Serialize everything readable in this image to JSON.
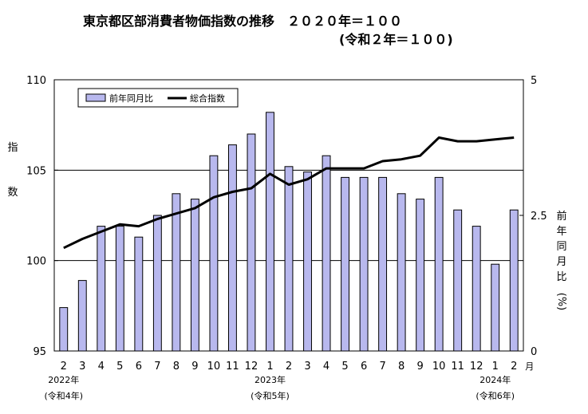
{
  "chart_data": {
    "type": "bar+line",
    "title": "東京都区部消費者物価指数の推移　２０２０年＝１００",
    "subtitle": "(令和２年＝１００)",
    "x": [
      "2",
      "3",
      "4",
      "5",
      "6",
      "7",
      "8",
      "9",
      "10",
      "11",
      "12",
      "1",
      "2",
      "3",
      "4",
      "5",
      "6",
      "7",
      "8",
      "9",
      "10",
      "11",
      "12",
      "1",
      "2"
    ],
    "x_unit": "月",
    "year_labels": [
      {
        "year": "2022年",
        "era": "(令和4年)",
        "at": "2"
      },
      {
        "year": "2023年",
        "era": "(令和5年)",
        "at": "1"
      },
      {
        "year": "2024年",
        "era": "(令和6年)",
        "at": "1"
      }
    ],
    "left_axis": {
      "label": [
        "指",
        "数"
      ],
      "ylim": [
        95,
        110
      ],
      "ticks": [
        "95",
        "100",
        "105",
        "110"
      ]
    },
    "right_axis": {
      "label": [
        "前",
        "年",
        "同",
        "月",
        "比",
        "(%)"
      ],
      "ylim": [
        0,
        5
      ],
      "ticks": [
        "0",
        "2.5",
        "5"
      ]
    },
    "grid_lines_at_left": [
      100,
      105
    ],
    "legend": {
      "placement": "top-left",
      "bar_label": "前年同月比",
      "line_label": "総合指数"
    },
    "series": [
      {
        "name": "前年同月比",
        "kind": "bar",
        "axis": "right",
        "values": [
          0.8,
          1.3,
          2.3,
          2.3,
          2.1,
          2.5,
          2.9,
          2.8,
          3.6,
          3.8,
          4.0,
          4.4,
          3.4,
          3.3,
          3.6,
          3.2,
          3.2,
          3.2,
          2.9,
          2.8,
          3.2,
          2.6,
          2.3,
          1.6,
          2.6
        ]
      },
      {
        "name": "総合指数",
        "kind": "line",
        "axis": "left",
        "values": [
          100.7,
          101.2,
          101.6,
          102.0,
          101.9,
          102.3,
          102.6,
          102.9,
          103.5,
          103.8,
          104.0,
          104.8,
          104.2,
          104.5,
          105.1,
          105.1,
          105.1,
          105.5,
          105.6,
          105.8,
          106.8,
          106.6,
          106.6,
          106.7,
          106.8
        ]
      }
    ],
    "colors": {
      "bar_fill": "#b8b8ee",
      "bar_stroke": "#000000",
      "line": "#000000",
      "grid": "#000000"
    }
  }
}
